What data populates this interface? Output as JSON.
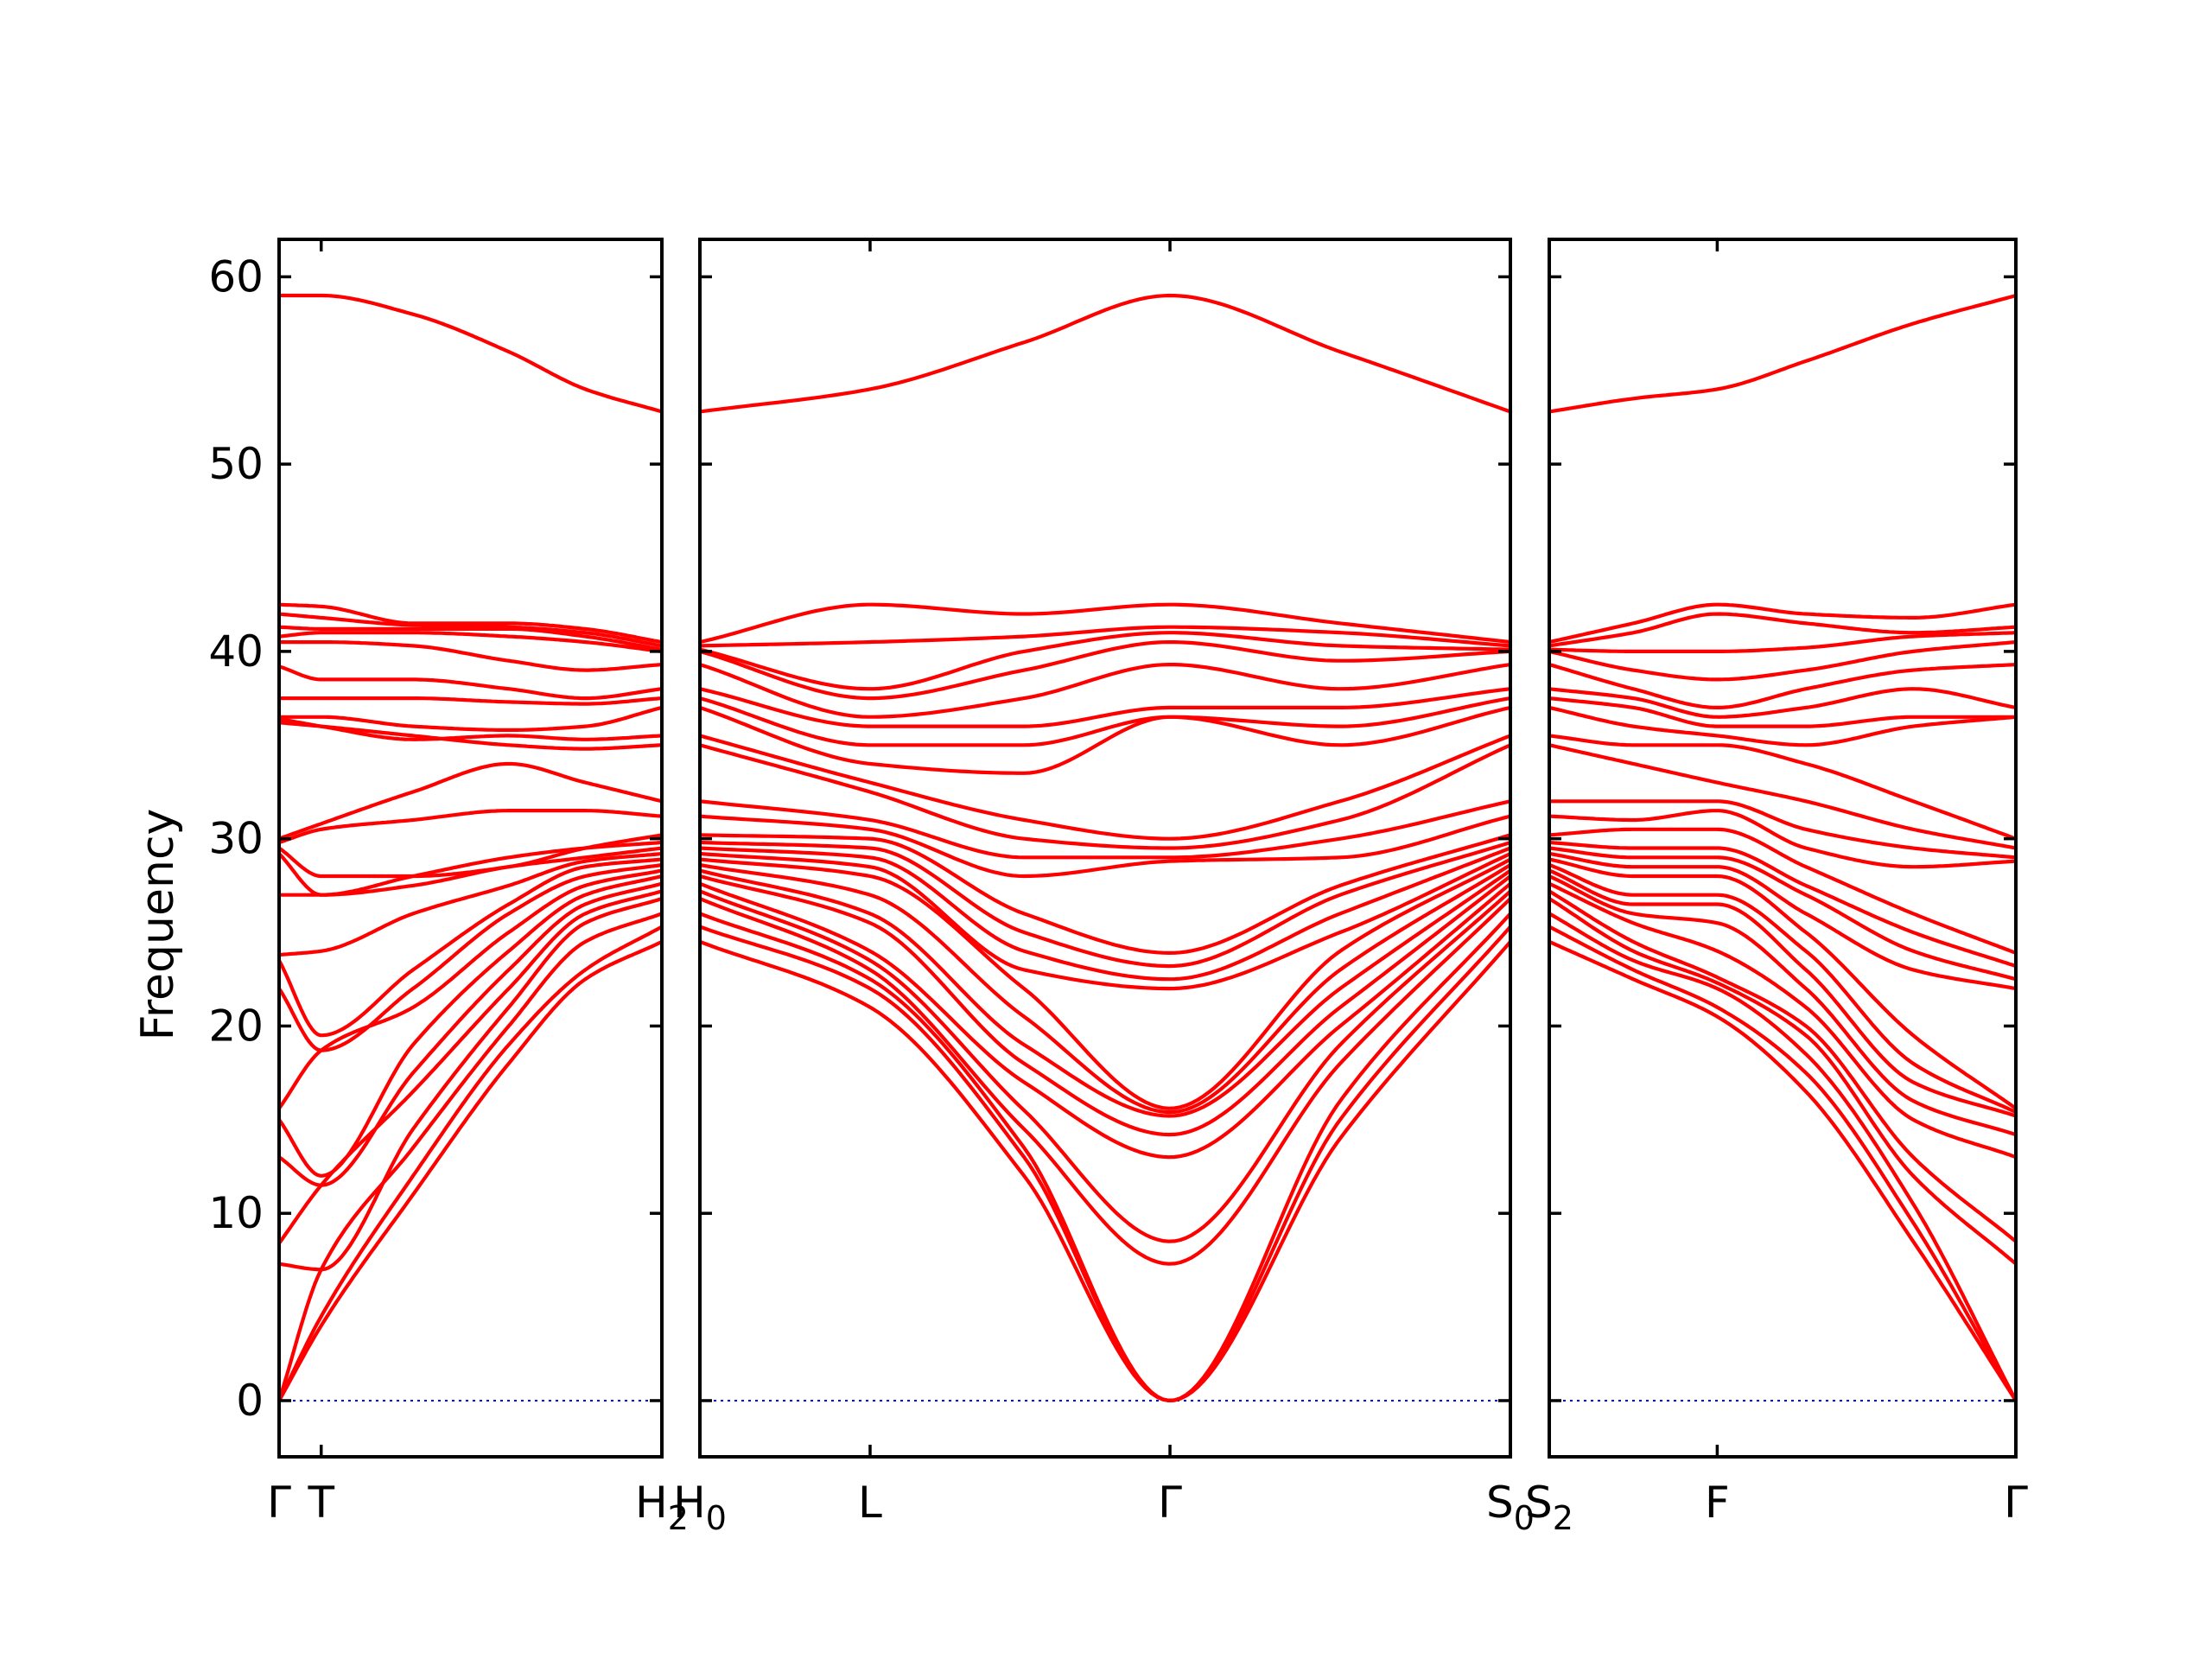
{
  "chart_data": {
    "type": "line",
    "title": "",
    "xlabel": "",
    "ylabel": "Frequency",
    "ylim": [
      -3,
      62
    ],
    "y_ticks": [
      "0",
      "10",
      "20",
      "30",
      "40",
      "50",
      "60"
    ],
    "grid": false,
    "band_color": "#ff0000",
    "zero_line_color": "#0000cc",
    "panels": [
      {
        "path_labels": [
          {
            "text": "Γ",
            "sub": "",
            "x": 0
          },
          {
            "text": "T",
            "sub": "",
            "x": 0.11
          },
          {
            "text": "H",
            "sub": "2",
            "x": 1
          }
        ],
        "x_ticks": [
          0.11
        ],
        "knots": [
          0,
          0.11,
          0.35,
          0.6,
          0.8,
          1
        ],
        "bands": [
          [
            0,
            4,
            11,
            18,
            22.5,
            24.5
          ],
          [
            0,
            4.5,
            12,
            19,
            23,
            25.3
          ],
          [
            0,
            7,
            13.5,
            20,
            24.5,
            26
          ],
          [
            7.3,
            7,
            14.5,
            21,
            25.5,
            26.8
          ],
          [
            8.4,
            11.5,
            16.5,
            22,
            26,
            27.2
          ],
          [
            13,
            11.5,
            17.5,
            23,
            26.5,
            27.6
          ],
          [
            15,
            12,
            19,
            24,
            27,
            28
          ],
          [
            15.6,
            18.7,
            21,
            25,
            27.5,
            28.3
          ],
          [
            22,
            18.7,
            22,
            26,
            28,
            28.6
          ],
          [
            23.5,
            19.5,
            23,
            26.5,
            28.5,
            28.9
          ],
          [
            23.8,
            24,
            26,
            27.5,
            28.8,
            29.2
          ],
          [
            27,
            27,
            27.5,
            28.5,
            29,
            29.5
          ],
          [
            29.2,
            27,
            28,
            29,
            29.5,
            29.8
          ],
          [
            29.5,
            28,
            28,
            28.5,
            29.5,
            30.2
          ],
          [
            29.8,
            30.5,
            31,
            31.5,
            31.5,
            31.2
          ],
          [
            30,
            30.8,
            32.5,
            34,
            33,
            32
          ],
          [
            36.2,
            36,
            35.5,
            35,
            34.8,
            35
          ],
          [
            36.4,
            36,
            35.3,
            35.5,
            35.3,
            35.5
          ],
          [
            36.5,
            36.5,
            36,
            35.8,
            36,
            37
          ],
          [
            37.5,
            37.5,
            37.5,
            37.3,
            37.2,
            37.5
          ],
          [
            39.2,
            38.5,
            38.5,
            38,
            37.5,
            38
          ],
          [
            40.5,
            40.5,
            40.3,
            39.5,
            39,
            39.3
          ],
          [
            40.8,
            41,
            41,
            40.8,
            40.5,
            40
          ],
          [
            41.3,
            41.2,
            41.2,
            41.2,
            40.8,
            40.1
          ],
          [
            42,
            41.8,
            41.4,
            41.3,
            41,
            40.3
          ],
          [
            42.5,
            42.4,
            41.5,
            41.5,
            41.2,
            40.5
          ],
          [
            59,
            59,
            58,
            56,
            54,
            52.8
          ]
        ]
      },
      {
        "path_labels": [
          {
            "text": "H",
            "sub": "0",
            "x": 0
          },
          {
            "text": "L",
            "sub": "",
            "x": 0.21
          },
          {
            "text": "Γ",
            "sub": "",
            "x": 0.58
          },
          {
            "text": "S",
            "sub": "0",
            "x": 1
          }
        ],
        "x_ticks": [
          0.21,
          0.58
        ],
        "knots": [
          0,
          0.21,
          0.4,
          0.58,
          0.79,
          1
        ],
        "bands": [
          [
            24.5,
            21,
            12,
            0,
            14,
            24.5
          ],
          [
            25.3,
            22,
            13,
            0,
            15,
            25.3
          ],
          [
            26,
            22.5,
            13.5,
            0,
            16,
            26
          ],
          [
            26.8,
            23,
            14.5,
            7.3,
            18,
            26.8
          ],
          [
            27.2,
            23.5,
            15.5,
            8.5,
            19,
            27.2
          ],
          [
            27.6,
            24,
            17,
            13,
            20,
            27.6
          ],
          [
            28,
            25.5,
            18,
            14.2,
            21,
            28
          ],
          [
            28.3,
            26,
            19,
            15.2,
            22,
            28.3
          ],
          [
            28.6,
            27,
            20.5,
            15.4,
            23,
            28.6
          ],
          [
            28.9,
            28,
            22,
            15.6,
            24,
            28.9
          ],
          [
            29.2,
            28.5,
            23,
            22,
            25,
            29.2
          ],
          [
            29.5,
            29,
            24,
            22.5,
            26,
            29.5
          ],
          [
            29.8,
            29.5,
            25,
            23.2,
            27,
            29.8
          ],
          [
            30.2,
            30,
            26,
            23.9,
            27.5,
            30.2
          ],
          [
            31.2,
            30.5,
            28,
            28.8,
            29,
            31.2
          ],
          [
            32,
            31,
            29,
            29,
            30,
            32
          ],
          [
            35,
            32.5,
            30,
            29.5,
            31,
            35
          ],
          [
            35.5,
            33,
            31,
            30,
            32,
            35.5
          ],
          [
            37,
            34,
            33.5,
            36.5,
            35,
            37
          ],
          [
            37.5,
            35,
            35,
            36.5,
            36,
            37.5
          ],
          [
            38,
            36,
            36,
            37,
            37,
            38
          ],
          [
            39.3,
            36.5,
            37.5,
            39.3,
            38,
            39.3
          ],
          [
            40,
            37.5,
            39,
            40.5,
            39.5,
            40
          ],
          [
            40.1,
            38,
            40,
            41,
            40.3,
            40.1
          ],
          [
            40.3,
            40.5,
            40.8,
            41.3,
            41,
            40.3
          ],
          [
            40.5,
            42.5,
            42,
            42.5,
            41.5,
            40.5
          ],
          [
            52.8,
            54,
            56.5,
            59,
            56,
            52.8
          ]
        ]
      },
      {
        "path_labels": [
          {
            "text": "S",
            "sub": "2",
            "x": 0
          },
          {
            "text": "F",
            "sub": "",
            "x": 0.36
          },
          {
            "text": "Γ",
            "sub": "",
            "x": 1
          }
        ],
        "x_ticks": [
          0.36
        ],
        "knots": [
          0,
          0.18,
          0.36,
          0.55,
          0.78,
          1
        ],
        "bands": [
          [
            24.5,
            22.5,
            20.5,
            16.5,
            8.5,
            0
          ],
          [
            25.3,
            23,
            21,
            17.5,
            9.5,
            0
          ],
          [
            26,
            23.5,
            22,
            18.5,
            10.5,
            0
          ],
          [
            26.8,
            24,
            22.3,
            19.5,
            12,
            7.3
          ],
          [
            27.2,
            24.5,
            22.6,
            20,
            13,
            8.5
          ],
          [
            27.6,
            25.5,
            24,
            21,
            15,
            13
          ],
          [
            28,
            26,
            25.5,
            22,
            16,
            14.2
          ],
          [
            28.3,
            26.5,
            26.5,
            23,
            17,
            15.2
          ],
          [
            28.6,
            27,
            27,
            24,
            18,
            15.4
          ],
          [
            28.9,
            28,
            28,
            25,
            19.5,
            15.6
          ],
          [
            29.2,
            28.5,
            28.5,
            26,
            23,
            22
          ],
          [
            29.5,
            29,
            29,
            27,
            24,
            22.5
          ],
          [
            29.8,
            29.5,
            29.5,
            27.5,
            25,
            23.2
          ],
          [
            30.2,
            30.5,
            30.5,
            28.5,
            26,
            23.9
          ],
          [
            31.2,
            31,
            31.5,
            29.5,
            28.5,
            28.8
          ],
          [
            32,
            32,
            32,
            30.5,
            29.5,
            29
          ],
          [
            35,
            34,
            33,
            32,
            30.5,
            29.5
          ],
          [
            35.5,
            35,
            35,
            34,
            32,
            30
          ],
          [
            37,
            36,
            35.5,
            35,
            36,
            36.5
          ],
          [
            37.5,
            37,
            36,
            36,
            36.5,
            36.5
          ],
          [
            38,
            37.5,
            36.5,
            37,
            38,
            37
          ],
          [
            39.3,
            38,
            37,
            38,
            39,
            39.3
          ],
          [
            40,
            39,
            38.5,
            39,
            40,
            40.5
          ],
          [
            40.1,
            40,
            40,
            40.2,
            40.8,
            41
          ],
          [
            40.3,
            41,
            42,
            41.5,
            41,
            41.3
          ],
          [
            40.5,
            41.5,
            42.5,
            42,
            41.8,
            42.5
          ],
          [
            52.8,
            53.5,
            54,
            55.5,
            57.5,
            59
          ]
        ]
      }
    ]
  }
}
